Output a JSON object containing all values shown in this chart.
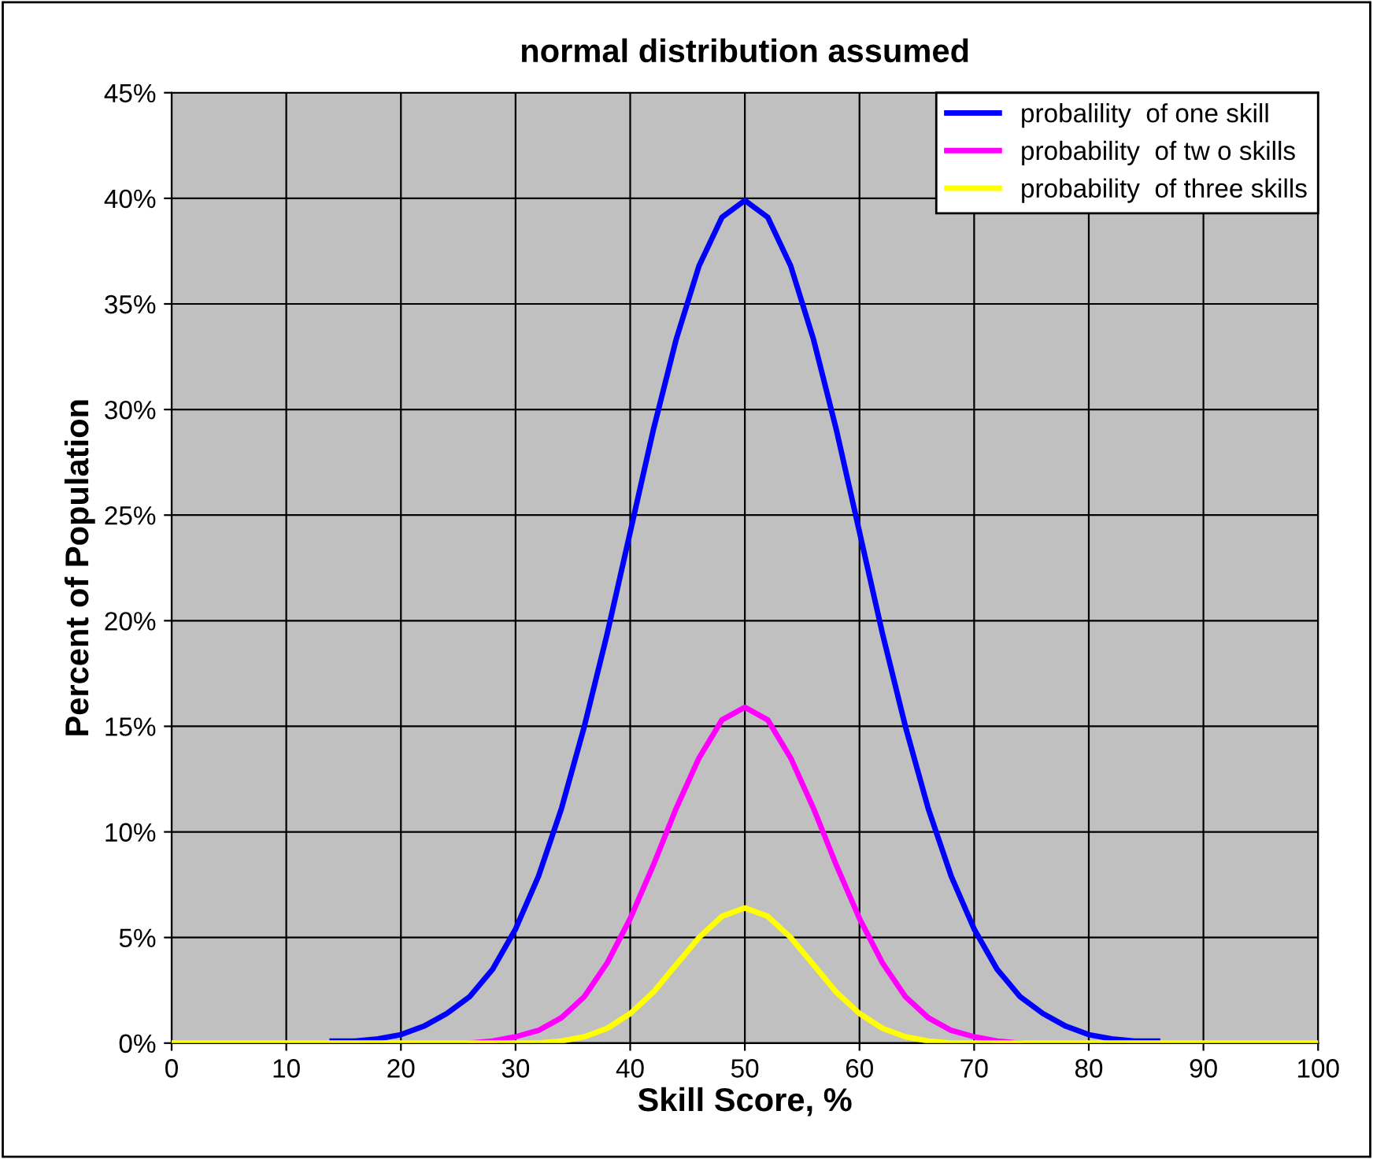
{
  "chart_data": {
    "type": "line",
    "title": "normal distribution assumed",
    "xlabel": "Skill Score, %",
    "ylabel": "Percent of Population",
    "x": [
      0,
      2,
      4,
      6,
      8,
      10,
      12,
      14,
      16,
      18,
      20,
      22,
      24,
      26,
      28,
      30,
      32,
      34,
      36,
      38,
      40,
      42,
      44,
      46,
      48,
      50,
      52,
      54,
      56,
      58,
      60,
      62,
      64,
      66,
      68,
      70,
      72,
      74,
      76,
      78,
      80,
      82,
      84,
      86,
      88,
      90,
      92,
      94,
      96,
      98,
      100
    ],
    "series": [
      {
        "name": "probalility  of one skill",
        "color": "#0000ff",
        "values": [
          null,
          null,
          null,
          null,
          null,
          null,
          null,
          0.1,
          0.1,
          0.2,
          0.4,
          0.8,
          1.4,
          2.2,
          3.5,
          5.4,
          7.9,
          11.1,
          15.0,
          19.4,
          24.2,
          29.0,
          33.3,
          36.8,
          39.1,
          39.9,
          39.1,
          36.8,
          33.3,
          29.0,
          24.2,
          19.4,
          15.0,
          11.1,
          7.9,
          5.4,
          3.5,
          2.2,
          1.4,
          0.8,
          0.4,
          0.2,
          0.1,
          0.1,
          null,
          null,
          null,
          null,
          null,
          null,
          null
        ]
      },
      {
        "name": "probability  of tw o skills",
        "color": "#ff00ff",
        "values": [
          null,
          null,
          null,
          null,
          null,
          null,
          null,
          null,
          null,
          null,
          null,
          null,
          null,
          0.0,
          0.1,
          0.3,
          0.6,
          1.2,
          2.2,
          3.8,
          5.9,
          8.4,
          11.1,
          13.5,
          15.3,
          15.9,
          15.3,
          13.5,
          11.1,
          8.4,
          5.9,
          3.8,
          2.2,
          1.2,
          0.6,
          0.3,
          0.1,
          0.0,
          null,
          null,
          null,
          null,
          null,
          null,
          null,
          null,
          null,
          null,
          null,
          null,
          null
        ]
      },
      {
        "name": "probability  of three skills",
        "color": "#ffff00",
        "values": [
          0,
          0,
          0,
          0,
          0,
          0,
          0,
          0,
          0,
          0,
          0,
          0,
          0,
          0,
          0,
          0,
          0,
          0.1,
          0.3,
          0.7,
          1.4,
          2.4,
          3.7,
          5.0,
          6.0,
          6.4,
          6.0,
          5.0,
          3.7,
          2.4,
          1.4,
          0.7,
          0.3,
          0.1,
          0,
          0,
          0,
          0,
          0,
          0,
          0,
          0,
          0,
          0,
          0,
          0,
          0,
          0,
          0,
          0,
          0
        ]
      }
    ],
    "xlim": [
      0,
      100
    ],
    "xticks": [
      0,
      10,
      20,
      30,
      40,
      50,
      60,
      70,
      80,
      90,
      100
    ],
    "ylim": [
      0,
      45
    ],
    "yticks": [
      {
        "value": 0,
        "label": "0%"
      },
      {
        "value": 5,
        "label": "5%"
      },
      {
        "value": 10,
        "label": "10%"
      },
      {
        "value": 15,
        "label": "15%"
      },
      {
        "value": 20,
        "label": "20%"
      },
      {
        "value": 25,
        "label": "25%"
      },
      {
        "value": 30,
        "label": "30%"
      },
      {
        "value": 35,
        "label": "35%"
      },
      {
        "value": 40,
        "label": "40%"
      },
      {
        "value": 45,
        "label": "45%"
      }
    ],
    "grid": true,
    "legend": "top right",
    "marker": "none",
    "line_style": "solid"
  }
}
